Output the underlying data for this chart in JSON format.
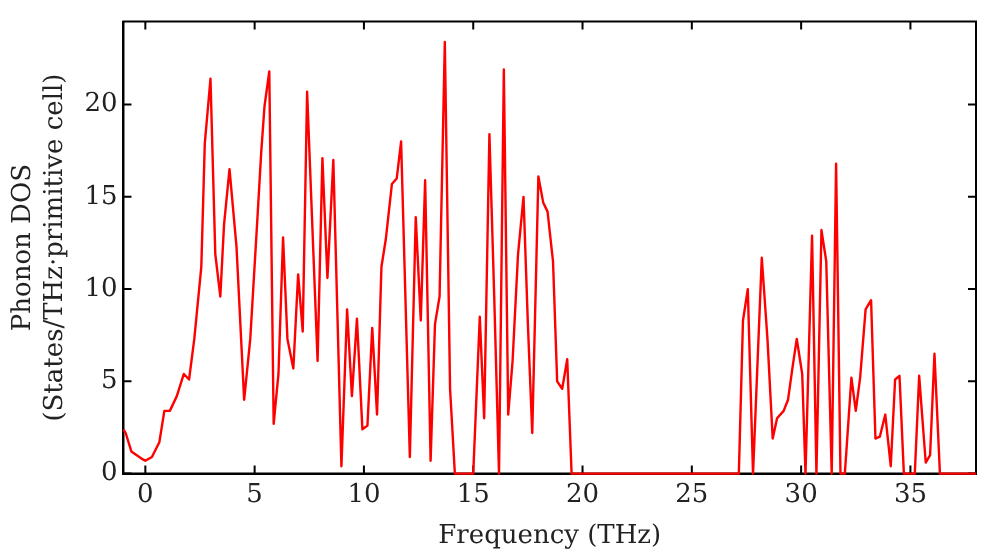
{
  "chart_data": {
    "type": "line",
    "xlabel": "Frequency (THz)",
    "ylabel": "Phonon DOS\n(States/THz·primitive cell)",
    "xlim": [
      -1,
      38
    ],
    "ylim": [
      0,
      24.5
    ],
    "xticks": [
      0,
      5,
      10,
      15,
      20,
      25,
      30,
      35
    ],
    "yticks": [
      0,
      5,
      10,
      15,
      20
    ],
    "grid": false,
    "legend": false,
    "marker": "none",
    "line_style": "solid",
    "series": [
      {
        "color": "#ff0000",
        "x": [
          -1,
          -0.9,
          -0.64,
          -0.16,
          0,
          0.3,
          0.64,
          0.87,
          1.12,
          1.44,
          1.76,
          2.0,
          2.24,
          2.56,
          2.72,
          2.98,
          3.2,
          3.43,
          3.6,
          3.85,
          4.17,
          4.52,
          4.8,
          5.13,
          5.3,
          5.45,
          5.67,
          5.87,
          6.09,
          6.3,
          6.5,
          6.77,
          6.99,
          7.2,
          7.4,
          7.88,
          8.1,
          8.33,
          8.6,
          8.97,
          9.23,
          9.45,
          9.68,
          9.93,
          10.16,
          10.38,
          10.6,
          10.8,
          11.0,
          11.28,
          11.5,
          11.7,
          12.1,
          12.37,
          12.6,
          12.8,
          13.05,
          13.25,
          13.46,
          13.7,
          13.94,
          14.16,
          15.0,
          15.3,
          15.5,
          15.74,
          15.96,
          16.18,
          16.4,
          16.6,
          16.8,
          17.05,
          17.3,
          17.5,
          17.7,
          17.98,
          18.2,
          18.4,
          18.65,
          18.84,
          19.07,
          19.3,
          19.5,
          27.15,
          27.34,
          27.56,
          27.8,
          28.2,
          28.46,
          28.7,
          28.9,
          29.2,
          29.4,
          29.6,
          29.8,
          30.05,
          30.2,
          30.5,
          30.7,
          30.93,
          31.15,
          31.4,
          31.6,
          31.8,
          32.0,
          32.3,
          32.5,
          32.7,
          32.95,
          33.2,
          33.4,
          33.6,
          33.85,
          34.1,
          34.3,
          34.5,
          34.7,
          35.2,
          35.4,
          35.7,
          35.9,
          36.1,
          36.35,
          38
        ],
        "values": [
          2.4,
          2.2,
          1.2,
          0.8,
          0.7,
          0.9,
          1.7,
          3.4,
          3.4,
          4.2,
          5.4,
          5.1,
          7.3,
          11.2,
          17.9,
          21.4,
          11.9,
          9.6,
          13.5,
          16.5,
          12.3,
          4.0,
          7.3,
          13.9,
          17.4,
          19.9,
          21.8,
          2.7,
          5.4,
          12.8,
          7.3,
          5.7,
          10.8,
          7.7,
          20.7,
          6.1,
          17.1,
          10.6,
          17.0,
          0.4,
          8.9,
          4.2,
          8.4,
          2.4,
          2.6,
          7.9,
          3.2,
          11.2,
          12.7,
          15.7,
          16.0,
          18.0,
          0.9,
          13.9,
          8.3,
          15.9,
          0.7,
          8.1,
          9.6,
          23.4,
          4.6,
          0,
          0,
          8.5,
          3.0,
          18.4,
          9.6,
          0,
          21.9,
          3.2,
          6.1,
          11.9,
          15.0,
          8.1,
          2.2,
          16.1,
          14.7,
          14.2,
          11.5,
          5.0,
          4.6,
          6.2,
          0,
          0,
          8.3,
          10.0,
          0,
          11.7,
          7.3,
          1.9,
          3.0,
          3.4,
          4.0,
          5.7,
          7.3,
          5.4,
          0,
          12.9,
          0,
          13.2,
          11.5,
          0,
          16.8,
          0,
          0,
          5.2,
          3.4,
          5.2,
          8.9,
          9.4,
          1.9,
          2.0,
          3.2,
          0.4,
          5.1,
          5.3,
          0,
          0,
          5.3,
          0.6,
          1.0,
          6.5,
          0,
          0
        ]
      }
    ]
  }
}
